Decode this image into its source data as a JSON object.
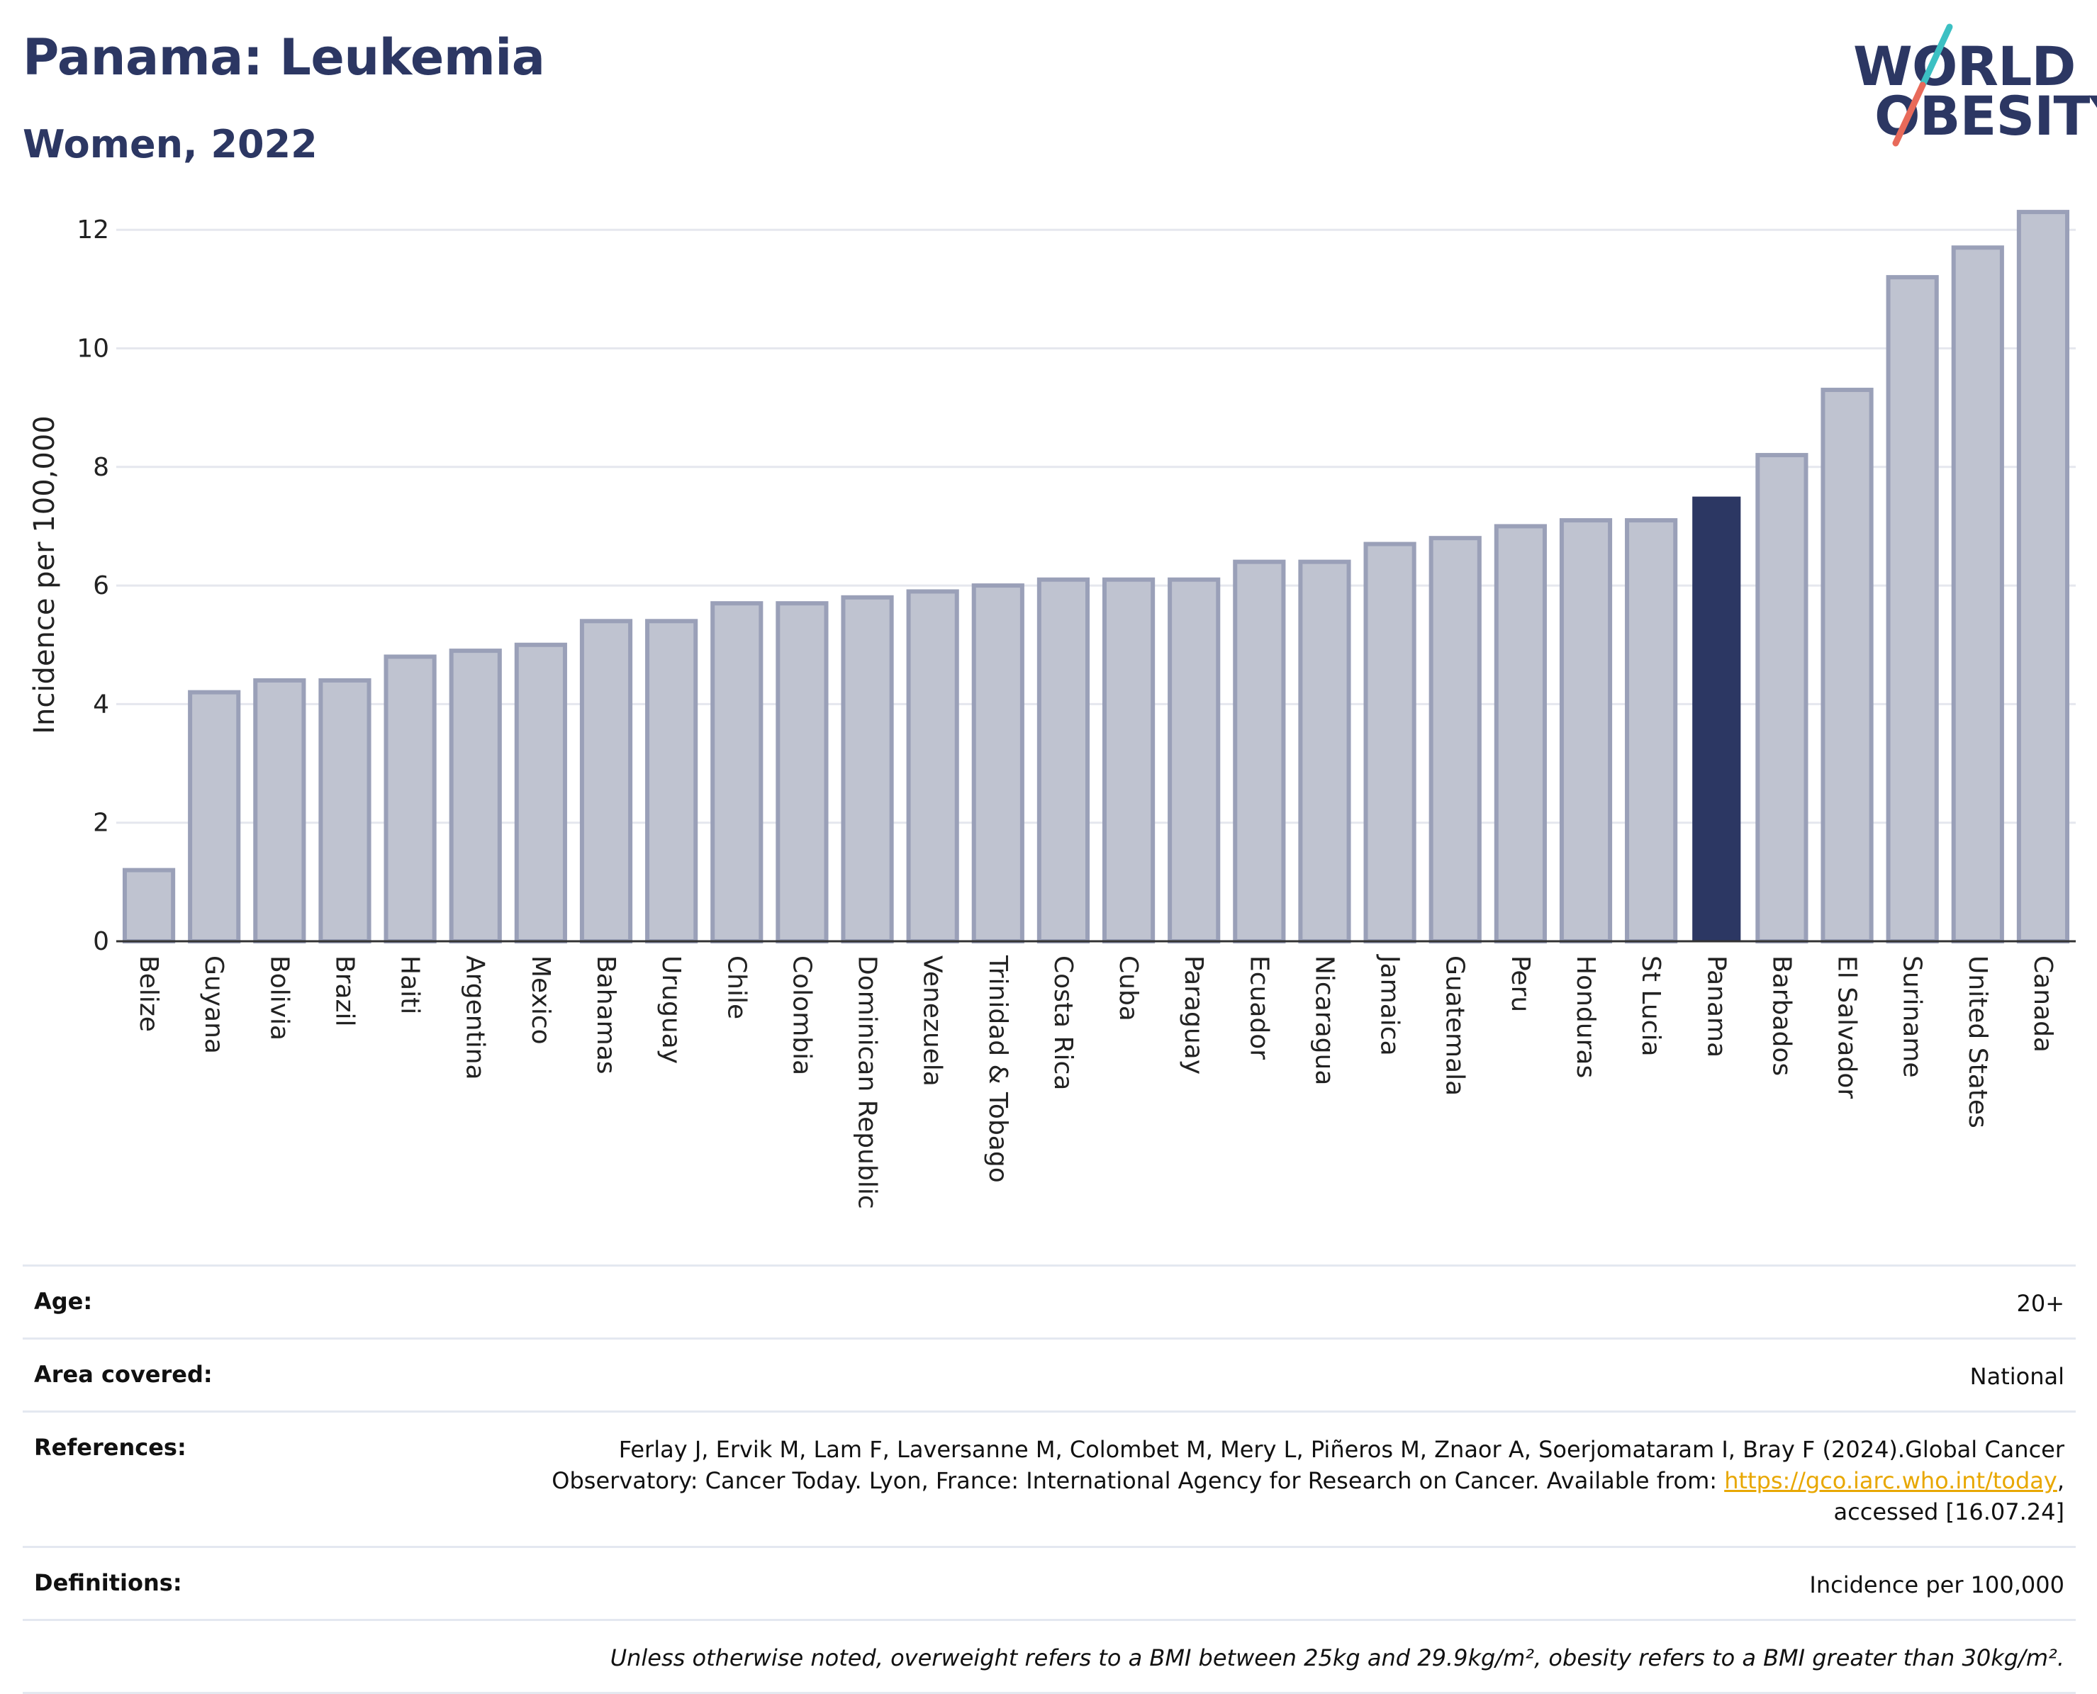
{
  "header": {
    "title": "Panama: Leukemia",
    "subtitle": "Women, 2022"
  },
  "logo": {
    "line1": "WORLD",
    "line2": "OBESITY",
    "colors": {
      "text": "#2c3763",
      "slash_top": "#3cc0c3",
      "slash_bottom": "#e86a5a"
    }
  },
  "chart_data": {
    "type": "bar",
    "ylabel": "Incidence per 100,000",
    "xlabel": "",
    "ylim": [
      0,
      12.6
    ],
    "yticks": [
      0,
      2,
      4,
      6,
      8,
      10,
      12
    ],
    "grid": true,
    "highlight": "Panama",
    "colors": {
      "bar": "#bfc3d0",
      "bar_border": "#9aa0b8",
      "highlight": "#2c3763",
      "grid": "#e5e7ee",
      "axis": "#333333"
    },
    "categories": [
      "Belize",
      "Guyana",
      "Bolivia",
      "Brazil",
      "Haiti",
      "Argentina",
      "Mexico",
      "Bahamas",
      "Uruguay",
      "Chile",
      "Colombia",
      "Dominican Republic",
      "Venezuela",
      "Trinidad & Tobago",
      "Costa Rica",
      "Cuba",
      "Paraguay",
      "Ecuador",
      "Nicaragua",
      "Jamaica",
      "Guatemala",
      "Peru",
      "Honduras",
      "St Lucia",
      "Panama",
      "Barbados",
      "El Salvador",
      "Suriname",
      "United States",
      "Canada"
    ],
    "values": [
      1.2,
      4.2,
      4.4,
      4.4,
      4.8,
      4.9,
      5.0,
      5.4,
      5.4,
      5.7,
      5.7,
      5.8,
      5.9,
      6.0,
      6.1,
      6.1,
      6.1,
      6.4,
      6.4,
      6.7,
      6.8,
      7.0,
      7.1,
      7.1,
      7.5,
      8.2,
      9.3,
      11.2,
      11.7,
      12.3
    ]
  },
  "info": {
    "age_label": "Age:",
    "age_value": "20+",
    "area_label": "Area covered:",
    "area_value": "National",
    "references_label": "References:",
    "references_text_1": "Ferlay J, Ervik M, Lam F, Laversanne M, Colombet M, Mery L, Piñeros M, Znaor A, Soerjomataram I, Bray F (2024).Global Cancer",
    "references_text_2": "Observatory: Cancer Today. Lyon, France: International Agency for Research on Cancer. Available from:",
    "references_link": "https://gco.iarc.who.int/today",
    "references_text_3": "accessed [16.07.24]",
    "definitions_label": "Definitions:",
    "definitions_value": "Incidence per 100,000",
    "note": "Unless otherwise noted, overweight refers to a BMI between 25kg and 29.9kg/m², obesity refers to a BMI greater than 30kg/m²."
  }
}
